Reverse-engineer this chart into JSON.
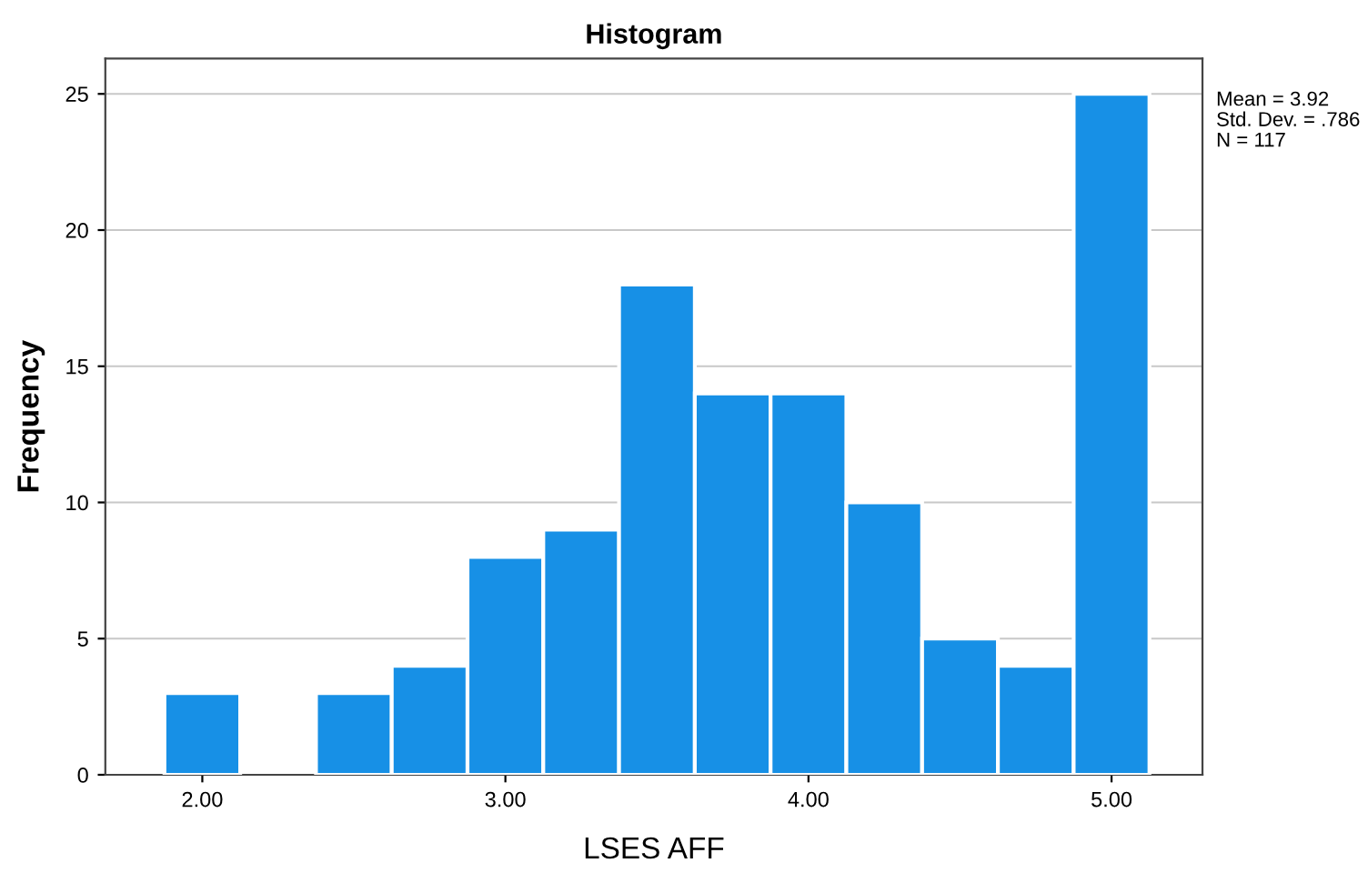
{
  "chart_data": {
    "type": "histogram",
    "title": "Histogram",
    "xlabel": "LSES AFF",
    "ylabel": "Frequency",
    "bins": [
      1.875,
      2.125,
      2.375,
      2.625,
      2.875,
      3.125,
      3.375,
      3.625,
      3.875,
      4.125,
      4.375,
      4.625,
      4.875,
      5.125
    ],
    "values": [
      3,
      0,
      3,
      4,
      8,
      9,
      18,
      14,
      14,
      10,
      5,
      4,
      25
    ],
    "color": "#1790e6",
    "xlim": [
      1.68,
      5.3
    ],
    "xticks": [
      {
        "value": 2,
        "label": "2.00"
      },
      {
        "value": 3,
        "label": "3.00"
      },
      {
        "value": 4,
        "label": "4.00"
      },
      {
        "value": 5,
        "label": "5.00"
      }
    ],
    "ylim": [
      0,
      26.3
    ],
    "yticks": [
      0,
      5,
      10,
      15,
      20,
      25
    ],
    "grid": "y",
    "annotations": [
      "Mean = 3.92",
      "Std. Dev. = .786",
      "N = 117"
    ]
  }
}
